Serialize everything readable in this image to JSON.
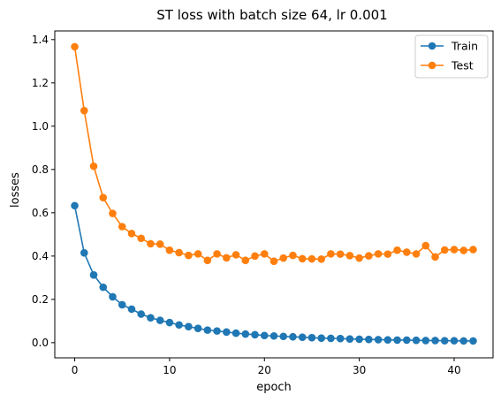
{
  "chart_data": {
    "type": "line",
    "title": "ST loss with batch size 64, lr 0.001",
    "xlabel": "epoch",
    "ylabel": "losses",
    "xlim": [
      -2.1,
      44.1
    ],
    "ylim": [
      -0.07,
      1.44
    ],
    "x_ticks": [
      0,
      10,
      20,
      30,
      40
    ],
    "y_ticks": [
      0.0,
      0.2,
      0.4,
      0.6,
      0.8,
      1.0,
      1.2,
      1.4
    ],
    "grid": false,
    "legend_position": "top-right",
    "x": [
      0,
      1,
      2,
      3,
      4,
      5,
      6,
      7,
      8,
      9,
      10,
      11,
      12,
      13,
      14,
      15,
      16,
      17,
      18,
      19,
      20,
      21,
      22,
      23,
      24,
      25,
      26,
      27,
      28,
      29,
      30,
      31,
      32,
      33,
      34,
      35,
      36,
      37,
      38,
      39,
      40,
      41,
      42
    ],
    "series": [
      {
        "name": "Train",
        "color": "#1f77b4",
        "marker": "circle",
        "values": [
          0.633,
          0.415,
          0.313,
          0.256,
          0.212,
          0.175,
          0.155,
          0.132,
          0.115,
          0.103,
          0.093,
          0.082,
          0.074,
          0.066,
          0.058,
          0.054,
          0.049,
          0.044,
          0.04,
          0.037,
          0.033,
          0.031,
          0.029,
          0.027,
          0.025,
          0.023,
          0.021,
          0.02,
          0.019,
          0.017,
          0.016,
          0.015,
          0.014,
          0.013,
          0.012,
          0.012,
          0.011,
          0.01,
          0.01,
          0.009,
          0.009,
          0.008,
          0.008
        ]
      },
      {
        "name": "Test",
        "color": "#ff7f0e",
        "marker": "circle",
        "values": [
          1.367,
          1.072,
          0.815,
          0.67,
          0.597,
          0.536,
          0.504,
          0.482,
          0.457,
          0.455,
          0.427,
          0.416,
          0.403,
          0.41,
          0.38,
          0.41,
          0.392,
          0.406,
          0.38,
          0.4,
          0.41,
          0.376,
          0.391,
          0.403,
          0.388,
          0.387,
          0.386,
          0.41,
          0.409,
          0.402,
          0.391,
          0.401,
          0.41,
          0.409,
          0.427,
          0.418,
          0.41,
          0.448,
          0.396,
          0.428,
          0.43,
          0.426,
          0.43
        ]
      }
    ]
  }
}
